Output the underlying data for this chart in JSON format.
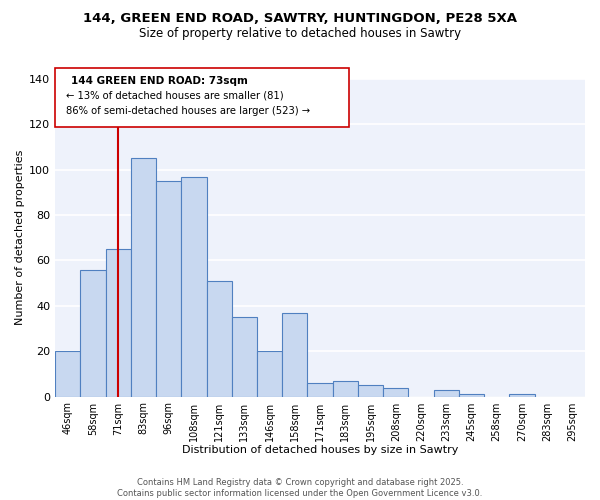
{
  "title": "144, GREEN END ROAD, SAWTRY, HUNTINGDON, PE28 5XA",
  "subtitle": "Size of property relative to detached houses in Sawtry",
  "xlabel": "Distribution of detached houses by size in Sawtry",
  "ylabel": "Number of detached properties",
  "bar_color": "#c8d8f0",
  "bar_edge_color": "#5080c0",
  "categories": [
    "46sqm",
    "58sqm",
    "71sqm",
    "83sqm",
    "96sqm",
    "108sqm",
    "121sqm",
    "133sqm",
    "146sqm",
    "158sqm",
    "171sqm",
    "183sqm",
    "195sqm",
    "208sqm",
    "220sqm",
    "233sqm",
    "245sqm",
    "258sqm",
    "270sqm",
    "283sqm",
    "295sqm"
  ],
  "values": [
    20,
    56,
    65,
    105,
    95,
    97,
    51,
    35,
    20,
    37,
    6,
    7,
    5,
    4,
    0,
    3,
    1,
    0,
    1,
    0,
    0
  ],
  "vline_x": 2,
  "vline_color": "#cc0000",
  "ylim": [
    0,
    140
  ],
  "yticks": [
    0,
    20,
    40,
    60,
    80,
    100,
    120,
    140
  ],
  "annotation_text_line1": "144 GREEN END ROAD: 73sqm",
  "annotation_text_line2": "← 13% of detached houses are smaller (81)",
  "annotation_text_line3": "86% of semi-detached houses are larger (523) →",
  "footer_line1": "Contains HM Land Registry data © Crown copyright and database right 2025.",
  "footer_line2": "Contains public sector information licensed under the Open Government Licence v3.0.",
  "background_color": "#eef2fb",
  "grid_color": "#ffffff",
  "fig_bg_color": "#ffffff"
}
